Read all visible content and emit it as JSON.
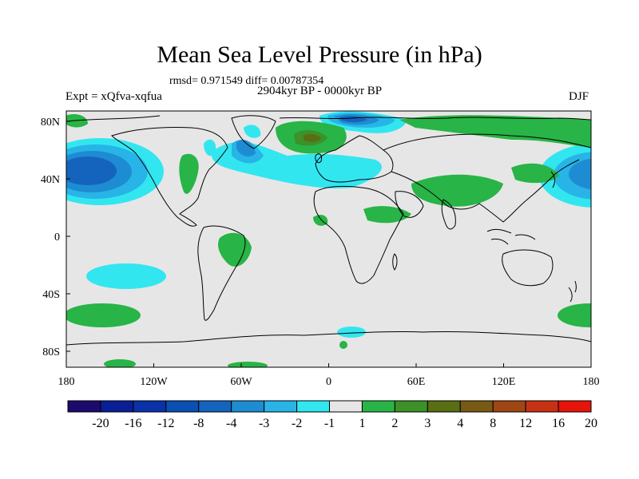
{
  "title": "Mean Sea Level Pressure (in hPa)",
  "stats": "rmsd= 0.971549 diff= 0.00787354",
  "period": "2904kyr BP - 0000kyr BP",
  "experiment": "Expt = xQfva-xqfua",
  "season": "DJF",
  "x_ticks": [
    "180",
    "120W",
    "60W",
    "0",
    "60E",
    "120E",
    "180"
  ],
  "y_ticks": [
    "80N",
    "40N",
    "0",
    "40S",
    "80S"
  ],
  "legend": {
    "labels": [
      "-20",
      "-16",
      "-12",
      "-8",
      "-4",
      "-3",
      "-2",
      "-1",
      "1",
      "2",
      "3",
      "4",
      "8",
      "12",
      "16",
      "20"
    ],
    "colors": [
      "#1e0a6e",
      "#0a1e96",
      "#0a32a8",
      "#0a50b4",
      "#1464be",
      "#1e8cd2",
      "#28b4e6",
      "#32e6f0",
      "#e6e6e6",
      "#28b446",
      "#3c9128",
      "#5a6e14",
      "#785a14",
      "#a04614",
      "#c83214",
      "#e6140a"
    ]
  },
  "colors": {
    "background": "#e6e6e6",
    "neg_1": "#32e6f0",
    "neg_2": "#28b4e6",
    "neg_3": "#1e8cd2",
    "neg_4": "#1464be",
    "neg_8": "#0a50b4",
    "pos_1": "#28b446",
    "pos_2": "#3c9128",
    "pos_3": "#5a6e14"
  }
}
